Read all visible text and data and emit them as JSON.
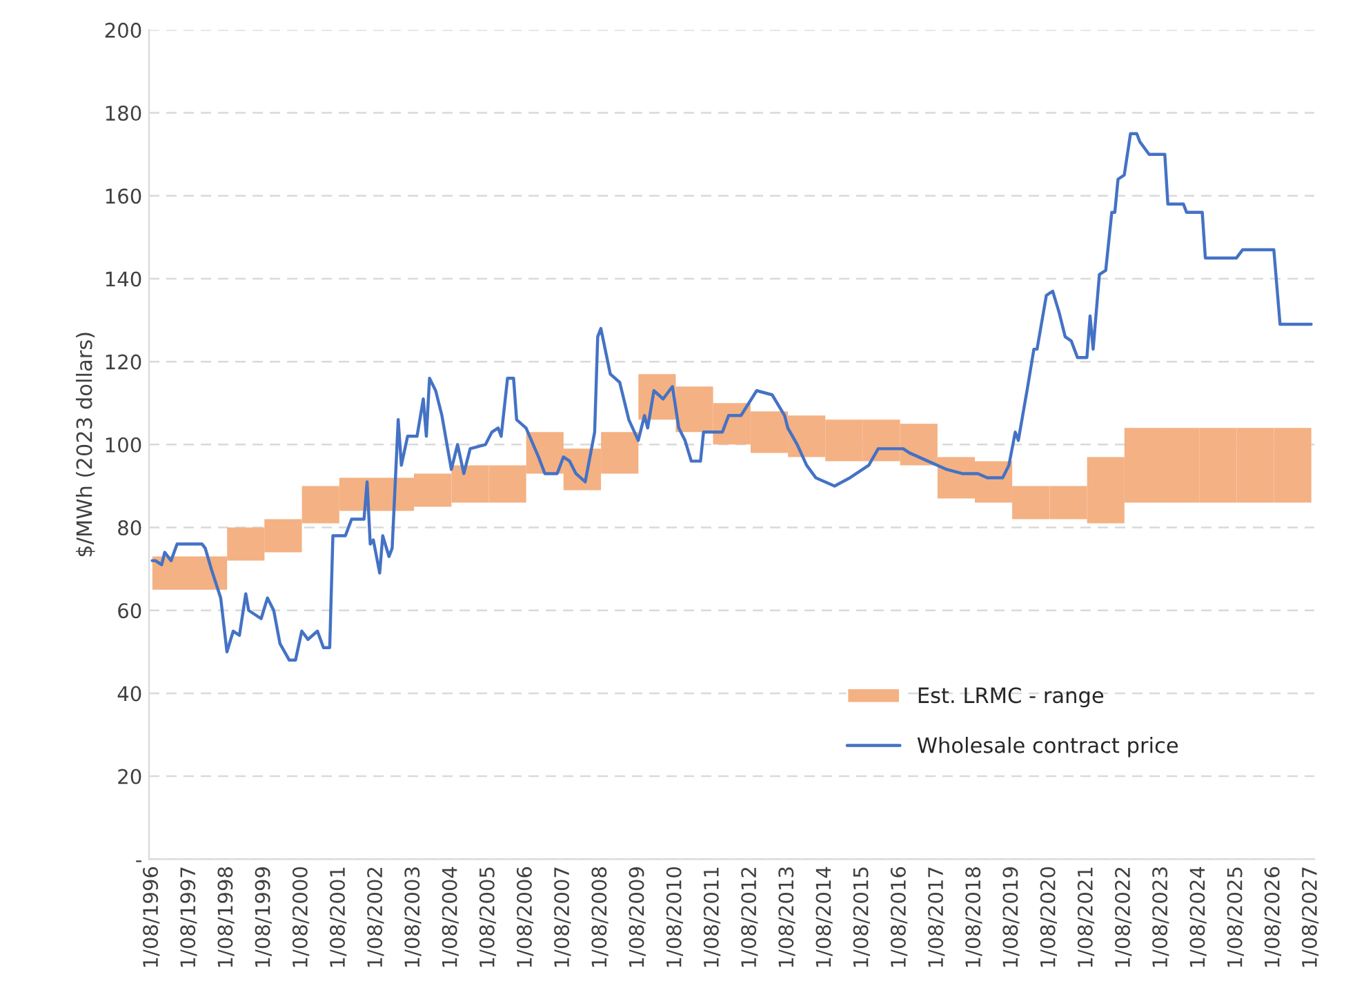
{
  "chart_data": {
    "type": "line",
    "ylabel": "$/MWh (2023 dollars)",
    "xlim": [
      "1996-07",
      "2027-09"
    ],
    "xticks": [
      {
        "value": "1996-08-01",
        "label": "1/08/1996"
      },
      {
        "value": "1997-08-01",
        "label": "1/08/1997"
      },
      {
        "value": "1998-08-01",
        "label": "1/08/1998"
      },
      {
        "value": "1999-08-01",
        "label": "1/08/1999"
      },
      {
        "value": "2000-08-01",
        "label": "1/08/2000"
      },
      {
        "value": "2001-08-01",
        "label": "1/08/2001"
      },
      {
        "value": "2002-08-01",
        "label": "1/08/2002"
      },
      {
        "value": "2003-08-01",
        "label": "1/08/2003"
      },
      {
        "value": "2004-08-01",
        "label": "1/08/2004"
      },
      {
        "value": "2005-08-01",
        "label": "1/08/2005"
      },
      {
        "value": "2006-08-01",
        "label": "1/08/2006"
      },
      {
        "value": "2007-08-01",
        "label": "1/08/2007"
      },
      {
        "value": "2008-08-01",
        "label": "1/08/2008"
      },
      {
        "value": "2009-08-01",
        "label": "1/08/2009"
      },
      {
        "value": "2010-08-01",
        "label": "1/08/2010"
      },
      {
        "value": "2011-08-01",
        "label": "1/08/2011"
      },
      {
        "value": "2012-08-01",
        "label": "1/08/2012"
      },
      {
        "value": "2013-08-01",
        "label": "1/08/2013"
      },
      {
        "value": "2014-08-01",
        "label": "1/08/2014"
      },
      {
        "value": "2015-08-01",
        "label": "1/08/2015"
      },
      {
        "value": "2016-08-01",
        "label": "1/08/2016"
      },
      {
        "value": "2017-08-01",
        "label": "1/08/2017"
      },
      {
        "value": "2018-08-01",
        "label": "1/08/2018"
      },
      {
        "value": "2019-08-01",
        "label": "1/08/2019"
      },
      {
        "value": "2020-08-01",
        "label": "1/08/2020"
      },
      {
        "value": "2021-08-01",
        "label": "1/08/2021"
      },
      {
        "value": "2022-08-01",
        "label": "1/08/2022"
      },
      {
        "value": "2023-08-01",
        "label": "1/08/2023"
      },
      {
        "value": "2024-08-01",
        "label": "1/08/2024"
      },
      {
        "value": "2025-08-01",
        "label": "1/08/2025"
      },
      {
        "value": "2026-08-01",
        "label": "1/08/2026"
      },
      {
        "value": "2027-08-01",
        "label": "1/08/2027"
      }
    ],
    "ylim": [
      0,
      200
    ],
    "yticks": [
      {
        "value": 0,
        "label": "-"
      },
      20,
      40,
      60,
      80,
      100,
      120,
      140,
      160,
      180,
      200
    ],
    "grid": "y",
    "legend": "bottom right",
    "series": [
      {
        "name": "Est. LRMC - range",
        "type": "bar",
        "color": "#f4b183",
        "x": [
          "1997-02",
          "1998-02",
          "1999-02",
          "2000-02",
          "2001-02",
          "2002-02",
          "2003-02",
          "2004-02",
          "2005-02",
          "2006-02",
          "2007-02",
          "2008-02",
          "2009-02",
          "2010-02",
          "2011-02",
          "2012-02",
          "2013-02",
          "2014-02",
          "2015-02",
          "2016-02",
          "2017-02",
          "2018-02",
          "2019-02",
          "2020-02",
          "2021-02",
          "2022-02",
          "2023-02",
          "2024-02",
          "2025-02",
          "2026-02",
          "2027-02"
        ],
        "base": [
          65,
          65,
          72,
          74,
          81,
          84,
          84,
          85,
          86,
          86,
          93,
          89,
          93,
          106,
          103,
          100,
          98,
          97,
          96,
          96,
          95,
          87,
          86,
          82,
          82,
          81,
          86,
          86,
          86,
          86,
          86
        ],
        "values": [
          8,
          8,
          8,
          8,
          9,
          8,
          8,
          8,
          9,
          9,
          10,
          10,
          10,
          11,
          11,
          10,
          10,
          10,
          10,
          10,
          10,
          10,
          10,
          8,
          8,
          16,
          18,
          18,
          18,
          18,
          18
        ]
      },
      {
        "name": "Wholesale contract price",
        "color": "#4472c4",
        "x": [
          "1996-08",
          "1996-09",
          "1996-11",
          "1996-12",
          "1997-02",
          "1997-04",
          "1997-12",
          "1998-01",
          "1998-03",
          "1998-06",
          "1998-08",
          "1998-10",
          "1998-12",
          "1999-02",
          "1999-03",
          "1999-07",
          "1999-09",
          "1999-11",
          "2000-01",
          "2000-04",
          "2000-06",
          "2000-08",
          "2000-10",
          "2001-01",
          "2001-03",
          "2001-05",
          "2001-06",
          "2001-10",
          "2001-12",
          "2002-04",
          "2002-05",
          "2002-06",
          "2002-07",
          "2002-09",
          "2002-10",
          "2002-12",
          "2003-01",
          "2003-03",
          "2003-04",
          "2003-06",
          "2003-09",
          "2003-11",
          "2003-12",
          "2004-01",
          "2004-03",
          "2004-05",
          "2004-08",
          "2004-10",
          "2004-12",
          "2005-02",
          "2005-07",
          "2005-09",
          "2005-11",
          "2005-12",
          "2006-02",
          "2006-04",
          "2006-05",
          "2006-08",
          "2006-12",
          "2007-02",
          "2007-06",
          "2007-08",
          "2007-10",
          "2007-12",
          "2008-03",
          "2008-06",
          "2008-07",
          "2008-08",
          "2008-11",
          "2009-02",
          "2009-05",
          "2009-08",
          "2009-10",
          "2009-11",
          "2010-01",
          "2010-04",
          "2010-07",
          "2010-09",
          "2010-11",
          "2011-01",
          "2011-04",
          "2011-05",
          "2011-08",
          "2011-11",
          "2012-01",
          "2012-05",
          "2012-10",
          "2013-03",
          "2013-07",
          "2013-08",
          "2013-11",
          "2014-02",
          "2014-05",
          "2014-11",
          "2015-04",
          "2015-10",
          "2016-01",
          "2016-09",
          "2016-11",
          "2017-05",
          "2017-11",
          "2018-04",
          "2018-09",
          "2018-12",
          "2019-05",
          "2019-07",
          "2019-09",
          "2019-10",
          "2020-01",
          "2020-03",
          "2020-04",
          "2020-07",
          "2020-09",
          "2020-11",
          "2021-01",
          "2021-03",
          "2021-05",
          "2021-08",
          "2021-09",
          "2021-10",
          "2021-12",
          "2022-02",
          "2022-04",
          "2022-05",
          "2022-06",
          "2022-08",
          "2022-10",
          "2022-12",
          "2023-01",
          "2023-04",
          "2023-09",
          "2023-10",
          "2024-03",
          "2024-04",
          "2024-09",
          "2024-10",
          "2025-08",
          "2025-10",
          "2026-08",
          "2026-10",
          "2027-08"
        ],
        "values": [
          72,
          72,
          71,
          74,
          72,
          76,
          76,
          75,
          70,
          63,
          50,
          55,
          54,
          64,
          60,
          58,
          63,
          60,
          52,
          48,
          48,
          55,
          53,
          55,
          51,
          51,
          78,
          78,
          82,
          82,
          91,
          76,
          77,
          69,
          78,
          73,
          75,
          106,
          95,
          102,
          102,
          111,
          102,
          116,
          113,
          107,
          94,
          100,
          93,
          99,
          100,
          103,
          104,
          102,
          116,
          116,
          106,
          104,
          97,
          93,
          93,
          97,
          96,
          93,
          91,
          103,
          126,
          128,
          117,
          115,
          106,
          101,
          107,
          104,
          113,
          111,
          114,
          104,
          101,
          96,
          96,
          103,
          103,
          103,
          107,
          107,
          113,
          112,
          107,
          104,
          100,
          95,
          92,
          90,
          92,
          95,
          99,
          99,
          98,
          96,
          94,
          93,
          93,
          92,
          92,
          95,
          103,
          101,
          114,
          123,
          123,
          136,
          137,
          132,
          126,
          125,
          121,
          121,
          131,
          123,
          141,
          142,
          156,
          156,
          164,
          165,
          175,
          175,
          173,
          170,
          170,
          158,
          158,
          156,
          156,
          145,
          145,
          147,
          147,
          129,
          129
        ]
      }
    ]
  }
}
